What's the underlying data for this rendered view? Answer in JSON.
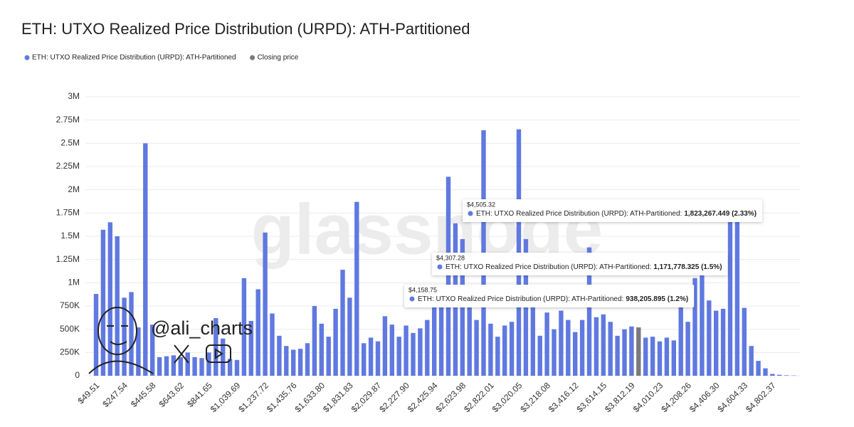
{
  "chart_data": {
    "type": "bar",
    "title": "ETH: UTXO Realized Price Distribution (URPD): ATH-Partitioned",
    "watermark": "glassnode",
    "handle": "@ali_charts",
    "categories": [
      "$49.51",
      null,
      null,
      null,
      "$247.54",
      null,
      null,
      null,
      "$445.58",
      null,
      null,
      null,
      "$643.62",
      null,
      null,
      null,
      "$841.65",
      null,
      null,
      null,
      "$1,039.69",
      null,
      null,
      null,
      "$1,237.72",
      null,
      null,
      null,
      "$1,435.76",
      null,
      null,
      null,
      "$1,633.80",
      null,
      null,
      null,
      "$1,831.83",
      null,
      null,
      null,
      "$2,029.87",
      null,
      null,
      null,
      "$2,227.90",
      null,
      null,
      null,
      "$2,425.94",
      null,
      null,
      null,
      "$2,623.98",
      null,
      null,
      null,
      "$2,822.01",
      null,
      null,
      null,
      "$3,020.05",
      null,
      null,
      null,
      "$3,218.08",
      null,
      null,
      null,
      "$3,416.12",
      null,
      null,
      null,
      "$3,614.15",
      null,
      null,
      null,
      "$3,812.19",
      null,
      null,
      null,
      "$4,010.23",
      null,
      null,
      null,
      "$4,208.26",
      null,
      null,
      null,
      "$4,406.30",
      null,
      null,
      null,
      "$4,604.33",
      null,
      null,
      null,
      "$4,802.37",
      null,
      null,
      null
    ],
    "series": [
      {
        "name": "ETH: UTXO Realized Price Distribution (URPD): ATH-Partitioned",
        "color": "#6079e0",
        "values": [
          880000,
          1570000,
          1650000,
          1500000,
          840000,
          900000,
          520000,
          2500000,
          550000,
          200000,
          210000,
          220000,
          200000,
          250000,
          200000,
          190000,
          250000,
          620000,
          400000,
          180000,
          170000,
          1050000,
          590000,
          930000,
          1540000,
          670000,
          430000,
          320000,
          280000,
          290000,
          350000,
          750000,
          560000,
          420000,
          720000,
          1140000,
          840000,
          1870000,
          350000,
          410000,
          370000,
          640000,
          550000,
          420000,
          540000,
          460000,
          510000,
          600000,
          750000,
          800000,
          2140000,
          1640000,
          1470000,
          950000,
          600000,
          2640000,
          560000,
          420000,
          540000,
          580000,
          2650000,
          1470000,
          900000,
          430000,
          680000,
          500000,
          700000,
          600000,
          470000,
          600000,
          1380000,
          630000,
          660000,
          580000,
          430000,
          500000,
          530000,
          null,
          410000,
          420000,
          370000,
          410000,
          380000,
          938205.895,
          580000,
          1050000,
          1171778.325,
          810000,
          700000,
          720000,
          1823267.449,
          1700000,
          730000,
          320000,
          160000,
          80000,
          20000,
          10000,
          5000,
          3000
        ]
      },
      {
        "name": "Closing price",
        "color": "#7a7a7a",
        "values": [
          null,
          null,
          null,
          null,
          null,
          null,
          null,
          null,
          null,
          null,
          null,
          null,
          null,
          null,
          null,
          null,
          null,
          null,
          null,
          null,
          null,
          null,
          null,
          null,
          null,
          null,
          null,
          null,
          null,
          null,
          null,
          null,
          null,
          null,
          null,
          null,
          null,
          null,
          null,
          null,
          null,
          null,
          null,
          null,
          null,
          null,
          null,
          null,
          null,
          null,
          null,
          null,
          null,
          null,
          null,
          null,
          null,
          null,
          null,
          null,
          null,
          null,
          null,
          null,
          null,
          null,
          null,
          null,
          null,
          null,
          null,
          null,
          null,
          null,
          null,
          null,
          null,
          520000,
          null,
          null,
          null,
          null,
          null,
          null,
          null,
          null,
          null,
          null,
          null,
          null,
          null,
          null,
          null,
          null,
          null,
          null,
          null,
          null,
          null,
          null
        ]
      }
    ],
    "ylim": [
      0,
      3000000
    ],
    "yticks": [
      0,
      {
        "value": 250000,
        "label": "250K"
      },
      {
        "value": 500000,
        "label": "500K"
      },
      {
        "value": 750000,
        "label": "750K"
      },
      {
        "value": 1000000,
        "label": "1M"
      },
      {
        "value": 1250000,
        "label": "1.25M"
      },
      {
        "value": 1500000,
        "label": "1.5M"
      },
      {
        "value": 1750000,
        "label": "1.75M"
      },
      {
        "value": 2000000,
        "label": "2M"
      },
      {
        "value": 2250000,
        "label": "2.25M"
      },
      {
        "value": 2500000,
        "label": "2.5M"
      },
      {
        "value": 2750000,
        "label": "2.75M"
      },
      {
        "value": 3000000,
        "label": "3M"
      }
    ],
    "grid": true,
    "tooltips": [
      {
        "title": "$4,505.32",
        "series": "ETH: UTXO Realized Price Distribution (URPD): ATH-Partitioned:",
        "value": "1,823,267.449 (2.33%)"
      },
      {
        "title": "$4,307.28",
        "series": "ETH: UTXO Realized Price Distribution (URPD): ATH-Partitioned:",
        "value": "1,171,778.325 (1.5%)"
      },
      {
        "title": "$4,158.75",
        "series": "ETH: UTXO Realized Price Distribution (URPD): ATH-Partitioned:",
        "value": "938,205.895 (1.2%)"
      }
    ]
  }
}
